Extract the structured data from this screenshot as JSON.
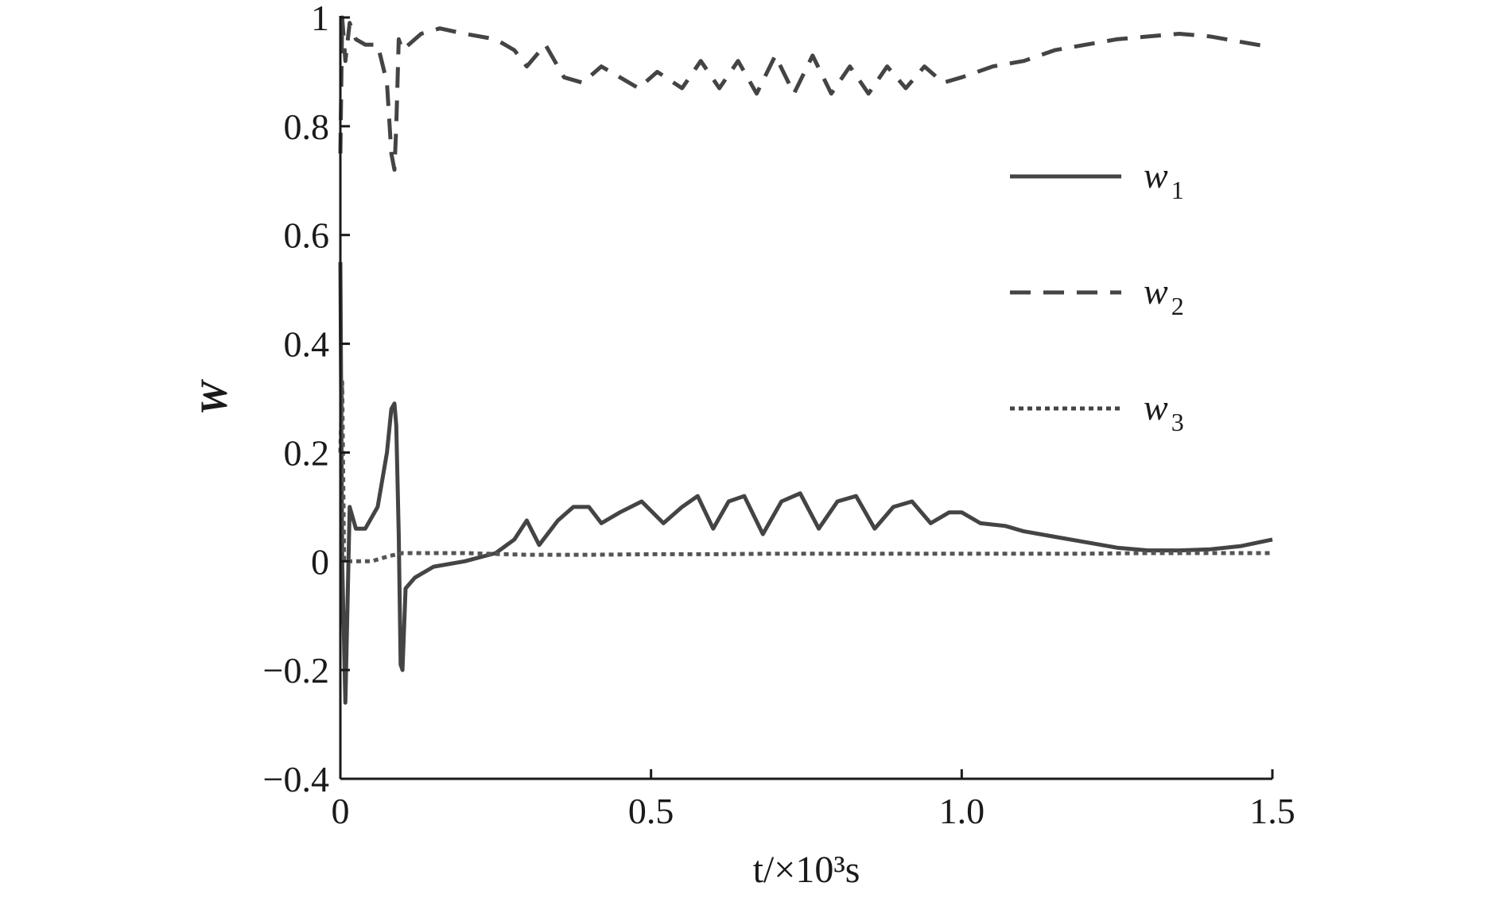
{
  "chart_data": {
    "type": "line",
    "title": "",
    "xlabel": "t/×10³s",
    "ylabel": "W",
    "xlim": [
      0,
      1.5
    ],
    "ylim": [
      -0.4,
      1.0
    ],
    "x_ticks": [
      "0",
      "0.5",
      "1.0",
      "1.5"
    ],
    "y_ticks": [
      "−0.4",
      "−0.2",
      "0",
      "0.2",
      "0.4",
      "0.6",
      "0.8",
      "1"
    ],
    "grid": false,
    "legend_position": "top-right",
    "series": [
      {
        "name": "w1",
        "style": "solid",
        "color": "#444444",
        "x": [
          0,
          0.003,
          0.008,
          0.015,
          0.025,
          0.04,
          0.06,
          0.075,
          0.082,
          0.087,
          0.09,
          0.094,
          0.097,
          0.1,
          0.105,
          0.12,
          0.15,
          0.2,
          0.25,
          0.28,
          0.3,
          0.32,
          0.35,
          0.375,
          0.4,
          0.42,
          0.45,
          0.485,
          0.52,
          0.55,
          0.575,
          0.6,
          0.625,
          0.65,
          0.68,
          0.71,
          0.74,
          0.77,
          0.8,
          0.83,
          0.86,
          0.89,
          0.92,
          0.95,
          0.98,
          1.0,
          1.03,
          1.07,
          1.1,
          1.15,
          1.2,
          1.25,
          1.3,
          1.35,
          1.4,
          1.45,
          1.5
        ],
        "y": [
          0.55,
          0.0,
          -0.26,
          0.1,
          0.06,
          0.06,
          0.1,
          0.2,
          0.28,
          0.29,
          0.25,
          0.05,
          -0.19,
          -0.2,
          -0.05,
          -0.03,
          -0.01,
          0.0,
          0.015,
          0.04,
          0.075,
          0.03,
          0.075,
          0.1,
          0.1,
          0.07,
          0.09,
          0.11,
          0.07,
          0.1,
          0.12,
          0.06,
          0.11,
          0.12,
          0.05,
          0.11,
          0.125,
          0.06,
          0.11,
          0.12,
          0.06,
          0.1,
          0.11,
          0.07,
          0.09,
          0.09,
          0.07,
          0.065,
          0.055,
          0.045,
          0.035,
          0.025,
          0.02,
          0.02,
          0.022,
          0.028,
          0.04
        ]
      },
      {
        "name": "w2",
        "style": "dashed",
        "color": "#444444",
        "x": [
          0,
          0.003,
          0.008,
          0.015,
          0.025,
          0.04,
          0.06,
          0.075,
          0.082,
          0.087,
          0.09,
          0.094,
          0.1,
          0.11,
          0.13,
          0.16,
          0.2,
          0.25,
          0.28,
          0.3,
          0.33,
          0.36,
          0.39,
          0.42,
          0.45,
          0.48,
          0.51,
          0.55,
          0.58,
          0.61,
          0.64,
          0.67,
          0.7,
          0.73,
          0.76,
          0.79,
          0.82,
          0.85,
          0.88,
          0.91,
          0.94,
          0.97,
          1.0,
          1.05,
          1.1,
          1.15,
          1.2,
          1.25,
          1.3,
          1.35,
          1.4,
          1.45,
          1.5
        ],
        "y": [
          0.75,
          1.0,
          0.92,
          0.99,
          0.96,
          0.95,
          0.95,
          0.88,
          0.75,
          0.72,
          0.8,
          0.96,
          0.94,
          0.95,
          0.97,
          0.98,
          0.97,
          0.96,
          0.94,
          0.91,
          0.95,
          0.89,
          0.88,
          0.91,
          0.89,
          0.87,
          0.9,
          0.87,
          0.92,
          0.87,
          0.92,
          0.86,
          0.93,
          0.86,
          0.93,
          0.86,
          0.91,
          0.86,
          0.91,
          0.87,
          0.91,
          0.88,
          0.89,
          0.91,
          0.92,
          0.94,
          0.95,
          0.96,
          0.965,
          0.97,
          0.965,
          0.955,
          0.945
        ]
      },
      {
        "name": "w3",
        "style": "dotted",
        "color": "#555555",
        "x": [
          0,
          0.003,
          0.006,
          0.01,
          0.02,
          0.05,
          0.08,
          0.1,
          0.2,
          0.3,
          0.4,
          0.5,
          0.6,
          0.7,
          0.8,
          0.9,
          1.0,
          1.1,
          1.2,
          1.3,
          1.4,
          1.5
        ],
        "y": [
          0.2,
          0.33,
          0.0,
          0.0,
          0.0,
          0.0,
          0.01,
          0.015,
          0.015,
          0.012,
          0.012,
          0.013,
          0.013,
          0.014,
          0.014,
          0.014,
          0.014,
          0.014,
          0.014,
          0.015,
          0.015,
          0.015
        ]
      }
    ],
    "legend": [
      {
        "label": "w",
        "sub": "1",
        "style": "solid"
      },
      {
        "label": "w",
        "sub": "2",
        "style": "dashed"
      },
      {
        "label": "w",
        "sub": "3",
        "style": "dotted"
      }
    ]
  }
}
